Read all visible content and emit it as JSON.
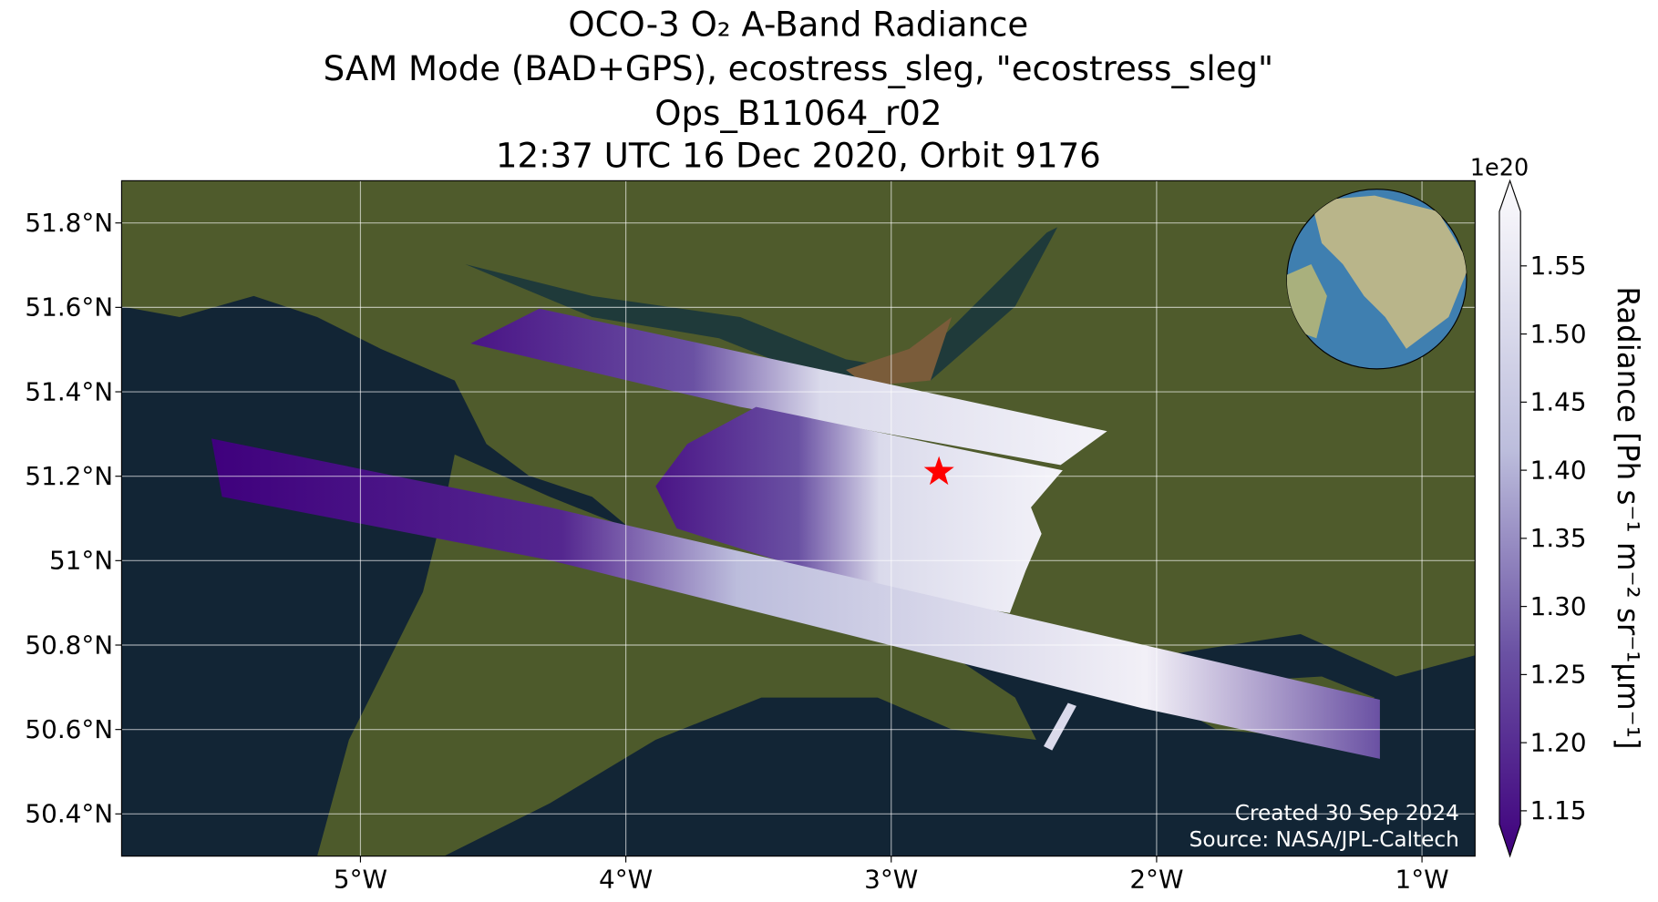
{
  "chart_data": {
    "type": "map",
    "title": [
      "OCO-3 O₂ A-Band Radiance",
      "SAM Mode (BAD+GPS), ecostress_sleg, \"ecostress_sleg\"",
      "Ops_B11064_r02",
      "12:37 UTC 16 Dec 2020, Orbit 9176"
    ],
    "xlim": [
      -5.9,
      -0.8
    ],
    "xticks": [
      {
        "value": -5,
        "label": "5°W"
      },
      {
        "value": -4,
        "label": "4°W"
      },
      {
        "value": -3,
        "label": "3°W"
      },
      {
        "value": -2,
        "label": "2°W"
      },
      {
        "value": -1,
        "label": "1°W"
      }
    ],
    "ylim": [
      50.3,
      51.9
    ],
    "yticks": [
      {
        "value": 50.4,
        "label": "50.4°N"
      },
      {
        "value": 50.6,
        "label": "50.6°N"
      },
      {
        "value": 50.8,
        "label": "50.8°N"
      },
      {
        "value": 51,
        "label": "51°N"
      },
      {
        "value": 51.2,
        "label": "51.2°N"
      },
      {
        "value": 51.4,
        "label": "51.4°N"
      },
      {
        "value": 51.6,
        "label": "51.6°N"
      },
      {
        "value": 51.8,
        "label": "51.8°N"
      }
    ],
    "grid": true,
    "target": {
      "lon": -2.82,
      "lat": 51.21,
      "color": "#ff0000"
    },
    "colorbar": {
      "label": "Radiance [Ph s⁻¹ m⁻² sr⁻¹μm⁻¹]",
      "offset_label": "1e20",
      "lim": [
        1.14,
        1.59
      ],
      "ticks": [
        1.15,
        {
          "value": 1.2,
          "label": "1.20"
        },
        1.25,
        {
          "value": 1.3,
          "label": "1.30"
        },
        1.35,
        {
          "value": 1.4,
          "label": "1.40"
        },
        1.45,
        {
          "value": 1.5,
          "label": "1.50"
        },
        1.55
      ]
    },
    "credits": [
      "Created 30 Sep 2024",
      "Source: NASA/JPL-Caltech"
    ]
  }
}
